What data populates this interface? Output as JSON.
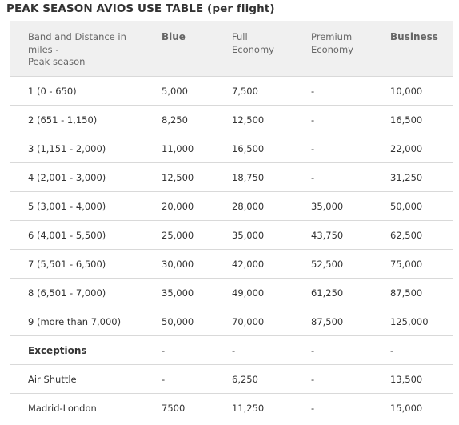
{
  "title": "PEAK SEASON AVIOS USE TABLE (per flight)",
  "headers": {
    "band_line1": "Band and Distance in",
    "band_line2": "miles -",
    "band_line3": "Peak season",
    "blue": "Blue",
    "full_line1": "Full",
    "full_line2": "Economy",
    "premium_line1": "Premium",
    "premium_line2": "Economy",
    "business": "Business"
  },
  "rows": [
    {
      "band": "1 (0 - 650)",
      "blue": "5,000",
      "full": "7,500",
      "premium": "-",
      "business": "10,000"
    },
    {
      "band": "2 (651 - 1,150)",
      "blue": "8,250",
      "full": "12,500",
      "premium": "-",
      "business": "16,500"
    },
    {
      "band": "3 (1,151 - 2,000)",
      "blue": "11,000",
      "full": "16,500",
      "premium": "-",
      "business": "22,000"
    },
    {
      "band": "4 (2,001 - 3,000)",
      "blue": "12,500",
      "full": "18,750",
      "premium": "-",
      "business": "31,250"
    },
    {
      "band": "5 (3,001 - 4,000)",
      "blue": "20,000",
      "full": "28,000",
      "premium": "35,000",
      "business": "50,000"
    },
    {
      "band": "6 (4,001 - 5,500)",
      "blue": "25,000",
      "full": "35,000",
      "premium": "43,750",
      "business": "62,500"
    },
    {
      "band": "7 (5,501 - 6,500)",
      "blue": "30,000",
      "full": "42,000",
      "premium": "52,500",
      "business": "75,000"
    },
    {
      "band": "8 (6,501 - 7,000)",
      "blue": "35,000",
      "full": "49,000",
      "premium": "61,250",
      "business": "87,500"
    },
    {
      "band": "9 (more than 7,000)",
      "blue": "50,000",
      "full": "70,000",
      "premium": "87,500",
      "business": "125,000"
    },
    {
      "band": "Exceptions",
      "blue": "-",
      "full": "-",
      "premium": "-",
      "business": "-"
    },
    {
      "band": "Air Shuttle",
      "blue": "-",
      "full": "6,250",
      "premium": "-",
      "business": "13,500"
    },
    {
      "band": "Madrid-London",
      "blue": "7500",
      "full": "11,250",
      "premium": "-",
      "business": "15,000"
    }
  ]
}
